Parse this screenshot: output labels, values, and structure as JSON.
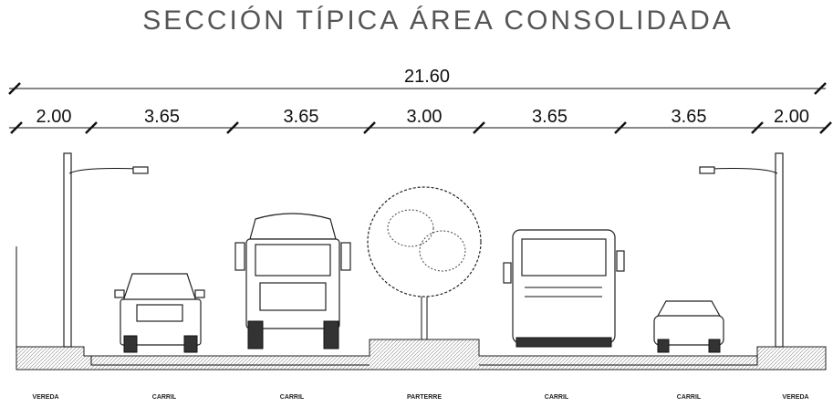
{
  "header": {
    "title": "SECCIÓN TÍPICA ÁREA CONSOLIDADA"
  },
  "dimensions": {
    "total": "21.60",
    "segments": [
      "2.00",
      "3.65",
      "3.65",
      "3.00",
      "3.65",
      "3.65",
      "2.00"
    ]
  },
  "labels": [
    "VEREDA",
    "CARRIL",
    "CARRIL",
    "PARTERRE",
    "CARRIL",
    "CARRIL",
    "VEREDA"
  ]
}
